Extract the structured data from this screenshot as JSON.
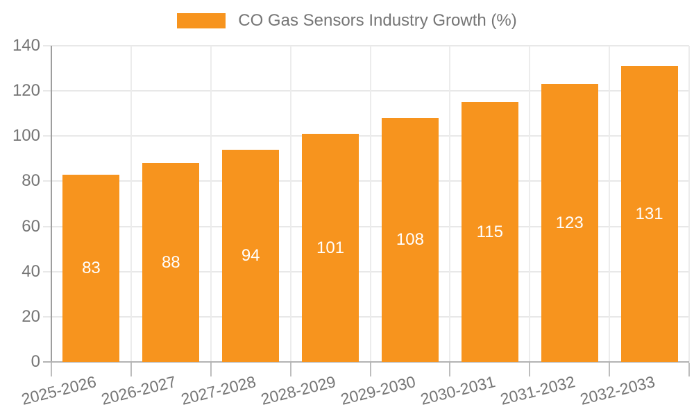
{
  "chart_data": {
    "type": "bar",
    "legend_label": "CO Gas Sensors Industry Growth (%)",
    "legend_position": "top",
    "categories": [
      "2025-2026",
      "2026-2027",
      "2027-2028",
      "2028-2029",
      "2029-2030",
      "2030-2031",
      "2031-2032",
      "2032-2033"
    ],
    "values": [
      83,
      88,
      94,
      101,
      108,
      115,
      123,
      131
    ],
    "value_labels": [
      "83",
      "88",
      "94",
      "101",
      "108",
      "115",
      "123",
      "131"
    ],
    "yticks": [
      "0",
      "20",
      "40",
      "60",
      "80",
      "100",
      "120",
      "140"
    ],
    "ytick_values": [
      0,
      20,
      40,
      60,
      80,
      100,
      120,
      140
    ],
    "ylim": [
      0,
      140
    ],
    "xlabel": "",
    "ylabel": "",
    "grid": true,
    "bar_label_position": "inside-center",
    "x_label_rotation_deg": -14
  },
  "colors": {
    "bar": "#f7941e",
    "bar_label": "#ffffff",
    "axis_text": "#757575",
    "legend_text": "#757575",
    "grid_line": "#e8e8e8",
    "vgrid_line": "#ececec",
    "y_axis_line": "#9e9e9e",
    "x_axis_line": "#b3b3b3",
    "tick": "#bdbdbd",
    "background": "#ffffff"
  }
}
